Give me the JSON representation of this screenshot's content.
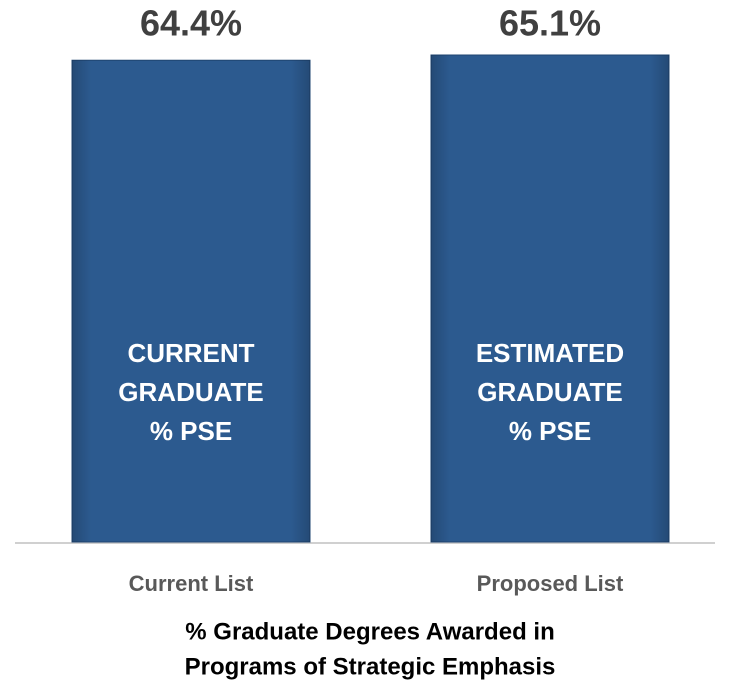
{
  "chart_data": {
    "type": "bar",
    "categories": [
      "Current List",
      "Proposed List"
    ],
    "values": [
      64.4,
      65.1
    ],
    "value_labels": [
      "64.4%",
      "65.1%"
    ],
    "bar_labels": [
      [
        "CURRENT",
        "GRADUATE",
        "% PSE"
      ],
      [
        "ESTIMATED",
        "GRADUATE",
        "% PSE"
      ]
    ],
    "color": "#2c5a8f",
    "xlabel": [
      "% Graduate Degrees Awarded in",
      "Programs of Strategic Emphasis"
    ]
  }
}
